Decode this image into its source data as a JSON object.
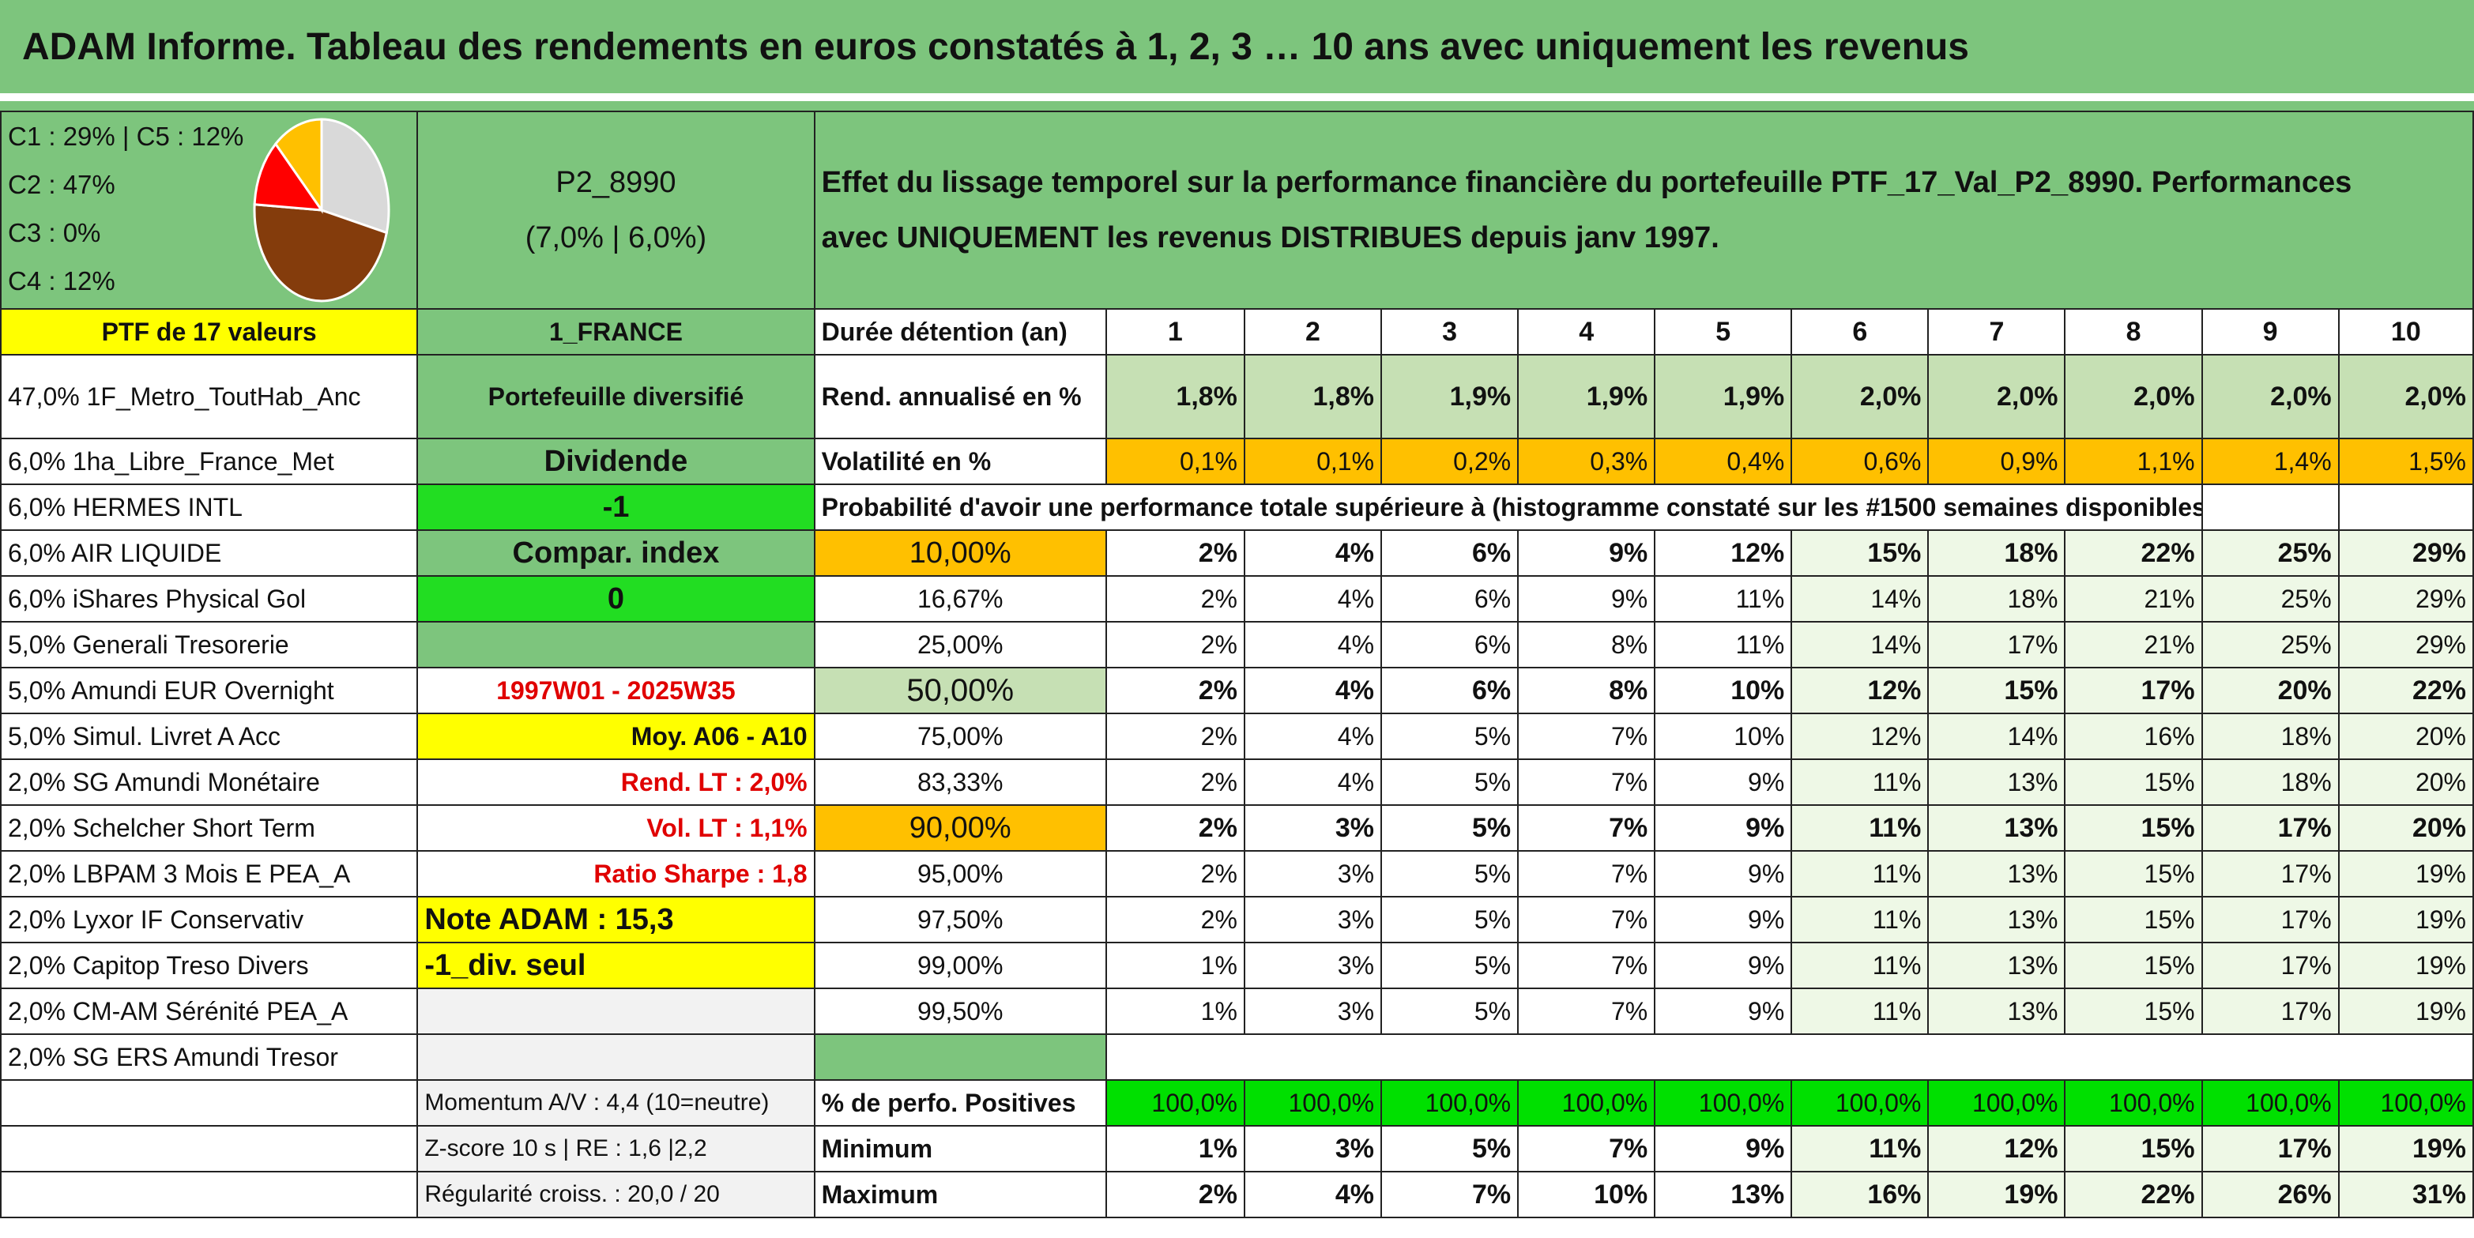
{
  "title": "ADAM Informe. Tableau des rendements en euros constatés à 1, 2, 3 … 10 ans avec uniquement les revenus",
  "composition": [
    "C1 : 29% | C5 : 12%",
    "C2 : 47%",
    "C3 : 0%",
    "C4 : 12%"
  ],
  "pie_slices": [
    {
      "name": "C1",
      "pct": 29,
      "color": "#d9d9d9"
    },
    {
      "name": "C2",
      "pct": 47,
      "color": "#843c0c"
    },
    {
      "name": "C3",
      "pct": 0,
      "color": "#a6a6a6"
    },
    {
      "name": "C4",
      "pct": 12,
      "color": "#ff0000"
    },
    {
      "name": "C5",
      "pct": 12,
      "color": "#ffc000"
    }
  ],
  "portfolio": {
    "code": "P2_8990",
    "rates": "(7,0% | 6,0%)"
  },
  "description": "Effet du lissage temporel sur la performance financière du portefeuille PTF_17_Val_P2_8990. Performances avec UNIQUEMENT les revenus DISTRIBUES depuis janv 1997.",
  "ptf_label": "PTF de 17 valeurs",
  "country": "1_FRANCE",
  "holding_label": "Durée détention (an)",
  "years": [
    "1",
    "2",
    "3",
    "4",
    "5",
    "6",
    "7",
    "8",
    "9",
    "10"
  ],
  "holdings": [
    "47,0% 1F_Metro_ToutHab_Anc",
    "6,0% 1ha_Libre_France_Met",
    "6,0% HERMES INTL",
    "6,0% AIR LIQUIDE",
    "6,0% iShares Physical Gol",
    "5,0% Generali Tresorerie",
    "5,0% Amundi EUR Overnight",
    "5,0% Simul. Livret A Acc",
    "2,0% SG Amundi Monétaire",
    "2,0% Schelcher Short Term",
    "2,0% LBPAM 3 Mois E PEA_A",
    "2,0% Lyxor IF Conservativ",
    "2,0% Capitop Treso Divers",
    "2,0% CM-AM Sérénité PEA_A",
    "2,0% SG ERS Amundi Tresor"
  ],
  "side": {
    "diversified": "Portefeuille diversifié",
    "dividend": "Dividende",
    "minus1": "-1",
    "compar": "Compar. index",
    "zero": "0",
    "period": "1997W01 - 2025W35",
    "moy": "Moy. A06 - A10",
    "rend_lt": "Rend. LT : 2,0%",
    "vol_lt": "Vol. LT : 1,1%",
    "sharpe": "Ratio Sharpe : 1,8",
    "note": "Note ADAM : 15,3",
    "div_only": "-1_div. seul",
    "momentum": "Momentum A/V : 4,4 (10=neutre)",
    "zscore": "Z-score 10 s | RE : 1,6 |2,2",
    "regularite": "Régularité croiss. : 20,0 / 20"
  },
  "rend": {
    "label": "Rend. annualisé en %",
    "values": [
      "1,8%",
      "1,8%",
      "1,9%",
      "1,9%",
      "1,9%",
      "2,0%",
      "2,0%",
      "2,0%",
      "2,0%",
      "2,0%"
    ]
  },
  "vol": {
    "label": "Volatilité en %",
    "values": [
      "0,1%",
      "0,1%",
      "0,2%",
      "0,3%",
      "0,4%",
      "0,6%",
      "0,9%",
      "1,1%",
      "1,4%",
      "1,5%"
    ]
  },
  "proba_title": "Probabilité d'avoir une performance totale supérieure à (histogramme constaté sur les #1500 semaines disponibles)",
  "proba": [
    {
      "p": "10,00%",
      "v": [
        "2%",
        "4%",
        "6%",
        "9%",
        "12%",
        "15%",
        "18%",
        "22%",
        "25%",
        "29%"
      ]
    },
    {
      "p": "16,67%",
      "v": [
        "2%",
        "4%",
        "6%",
        "9%",
        "11%",
        "14%",
        "18%",
        "21%",
        "25%",
        "29%"
      ]
    },
    {
      "p": "25,00%",
      "v": [
        "2%",
        "4%",
        "6%",
        "8%",
        "11%",
        "14%",
        "17%",
        "21%",
        "25%",
        "29%"
      ]
    },
    {
      "p": "50,00%",
      "v": [
        "2%",
        "4%",
        "6%",
        "8%",
        "10%",
        "12%",
        "15%",
        "17%",
        "20%",
        "22%"
      ]
    },
    {
      "p": "75,00%",
      "v": [
        "2%",
        "4%",
        "5%",
        "7%",
        "10%",
        "12%",
        "14%",
        "16%",
        "18%",
        "20%"
      ]
    },
    {
      "p": "83,33%",
      "v": [
        "2%",
        "4%",
        "5%",
        "7%",
        "9%",
        "11%",
        "13%",
        "15%",
        "18%",
        "20%"
      ]
    },
    {
      "p": "90,00%",
      "v": [
        "2%",
        "3%",
        "5%",
        "7%",
        "9%",
        "11%",
        "13%",
        "15%",
        "17%",
        "20%"
      ]
    },
    {
      "p": "95,00%",
      "v": [
        "2%",
        "3%",
        "5%",
        "7%",
        "9%",
        "11%",
        "13%",
        "15%",
        "17%",
        "19%"
      ]
    },
    {
      "p": "97,50%",
      "v": [
        "2%",
        "3%",
        "5%",
        "7%",
        "9%",
        "11%",
        "13%",
        "15%",
        "17%",
        "19%"
      ]
    },
    {
      "p": "99,00%",
      "v": [
        "1%",
        "3%",
        "5%",
        "7%",
        "9%",
        "11%",
        "13%",
        "15%",
        "17%",
        "19%"
      ]
    },
    {
      "p": "99,50%",
      "v": [
        "1%",
        "3%",
        "5%",
        "7%",
        "9%",
        "11%",
        "13%",
        "15%",
        "17%",
        "19%"
      ]
    }
  ],
  "positives": {
    "label": "% de perfo. Positives",
    "values": [
      "100,0%",
      "100,0%",
      "100,0%",
      "100,0%",
      "100,0%",
      "100,0%",
      "100,0%",
      "100,0%",
      "100,0%",
      "100,0%"
    ]
  },
  "minimum": {
    "label": "Minimum",
    "values": [
      "1%",
      "3%",
      "5%",
      "7%",
      "9%",
      "11%",
      "12%",
      "15%",
      "17%",
      "19%"
    ]
  },
  "maximum": {
    "label": "Maximum",
    "values": [
      "2%",
      "4%",
      "7%",
      "10%",
      "13%",
      "16%",
      "19%",
      "22%",
      "26%",
      "31%"
    ]
  }
}
